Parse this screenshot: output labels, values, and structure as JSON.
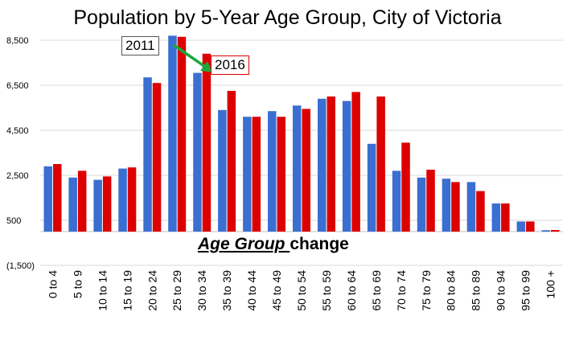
{
  "chart_data": {
    "type": "bar",
    "title": "Population by 5-Year Age Group, City of Victoria",
    "xlabel": "",
    "ylabel": "",
    "ylim": [
      -1500,
      9000
    ],
    "yticks": [
      -1500,
      500,
      2500,
      4500,
      6500,
      8500
    ],
    "ytick_labels": [
      "(1,500)",
      "500",
      "2,500",
      "4,500",
      "6,500",
      "8,500"
    ],
    "grid": true,
    "categories": [
      "0 to 4",
      "5 to 9",
      "10 to 14",
      "15 to 19",
      "20 to 24",
      "25 to 29",
      "30 to 34",
      "35 to 39",
      "40 to 44",
      "45 to 49",
      "50 to 54",
      "55 to 59",
      "60 to 64",
      "65 to 69",
      "70 to 74",
      "75 to 79",
      "80 to 84",
      "85 to 89",
      "90 to 94",
      "95 to 99",
      "100 +"
    ],
    "series": [
      {
        "name": "2011",
        "color": "#3a6fd1",
        "values": [
          2900,
          2400,
          2300,
          2800,
          6850,
          8700,
          7050,
          5400,
          5100,
          5350,
          5600,
          5900,
          5800,
          3900,
          2700,
          2400,
          2350,
          2200,
          1250,
          450,
          60
        ]
      },
      {
        "name": "2016",
        "color": "#dd0000",
        "values": [
          3000,
          2700,
          2450,
          2850,
          6600,
          8650,
          7900,
          6250,
          5100,
          5100,
          5450,
          6000,
          6200,
          6000,
          3950,
          2750,
          2200,
          1800,
          1250,
          450,
          70
        ]
      }
    ],
    "annotations": {
      "label_2011": "2011",
      "label_2016": "2016",
      "change_text_emphasis": "Age Group ",
      "change_text_rest": "change"
    }
  }
}
